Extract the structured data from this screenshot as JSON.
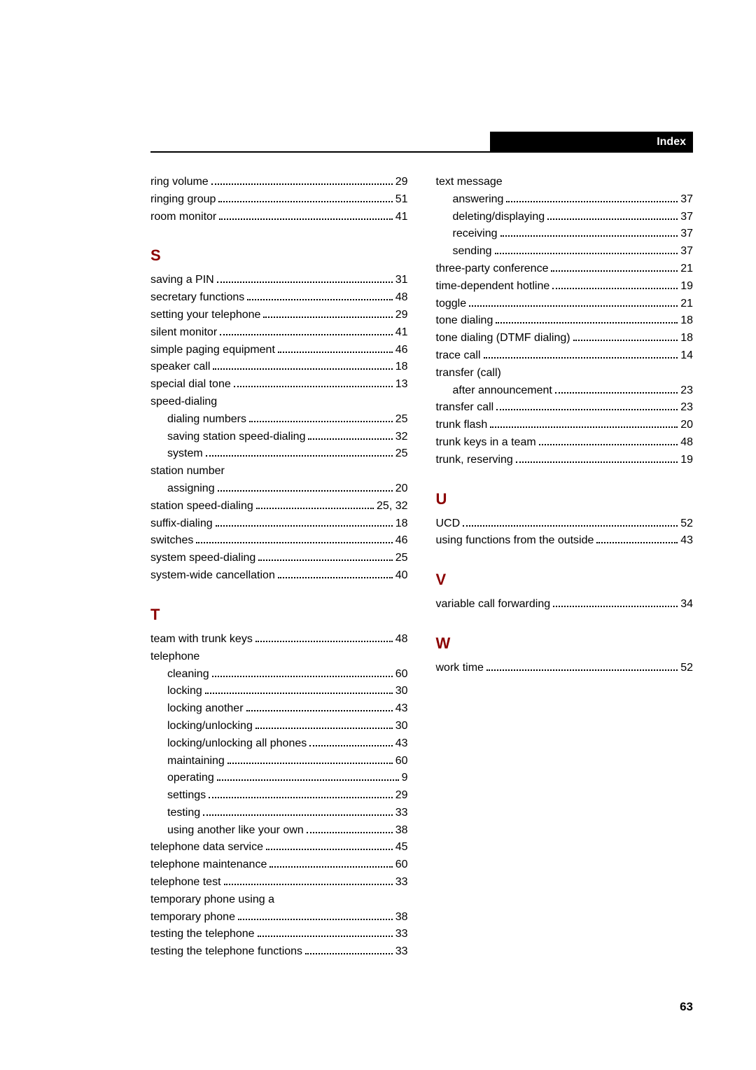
{
  "header": {
    "title": "Index"
  },
  "page_number": "63",
  "columns": [
    {
      "items": [
        {
          "type": "entry",
          "label": "ring volume",
          "page": "29"
        },
        {
          "type": "entry",
          "label": "ringing group",
          "page": "51"
        },
        {
          "type": "entry",
          "label": "room monitor",
          "page": "41"
        },
        {
          "type": "section",
          "letter": "S"
        },
        {
          "type": "entry",
          "label": "saving a PIN",
          "page": "31"
        },
        {
          "type": "entry",
          "label": "secretary functions",
          "page": "48"
        },
        {
          "type": "entry",
          "label": "setting your telephone",
          "page": "29"
        },
        {
          "type": "entry",
          "label": "silent monitor",
          "page": "41"
        },
        {
          "type": "entry",
          "label": "simple paging equipment",
          "page": "46"
        },
        {
          "type": "entry",
          "label": "speaker call",
          "page": "18"
        },
        {
          "type": "entry",
          "label": "special dial tone",
          "page": "13"
        },
        {
          "type": "group",
          "label": "speed-dialing"
        },
        {
          "type": "entry",
          "sub": true,
          "label": "dialing numbers",
          "page": "25"
        },
        {
          "type": "entry",
          "sub": true,
          "label": "saving station speed-dialing",
          "page": "32"
        },
        {
          "type": "entry",
          "sub": true,
          "label": "system",
          "page": "25"
        },
        {
          "type": "group",
          "label": "station number"
        },
        {
          "type": "entry",
          "sub": true,
          "label": "assigning",
          "page": "20"
        },
        {
          "type": "entry",
          "label": "station speed-dialing",
          "page": "25, 32"
        },
        {
          "type": "entry",
          "label": "suffix-dialing",
          "page": "18"
        },
        {
          "type": "entry",
          "label": "switches",
          "page": "46"
        },
        {
          "type": "entry",
          "label": "system speed-dialing",
          "page": "25"
        },
        {
          "type": "entry",
          "label": "system-wide cancellation",
          "page": "40"
        },
        {
          "type": "section",
          "letter": "T"
        },
        {
          "type": "entry",
          "label": "team with trunk keys",
          "page": "48"
        },
        {
          "type": "group",
          "label": "telephone"
        },
        {
          "type": "entry",
          "sub": true,
          "label": "cleaning",
          "page": "60"
        },
        {
          "type": "entry",
          "sub": true,
          "label": "locking",
          "page": "30"
        },
        {
          "type": "entry",
          "sub": true,
          "label": "locking another",
          "page": "43"
        },
        {
          "type": "entry",
          "sub": true,
          "label": "locking/unlocking",
          "page": "30"
        },
        {
          "type": "entry",
          "sub": true,
          "label": "locking/unlocking all phones",
          "page": "43"
        },
        {
          "type": "entry",
          "sub": true,
          "label": "maintaining",
          "page": "60"
        },
        {
          "type": "entry",
          "sub": true,
          "label": "operating",
          "page": "9"
        },
        {
          "type": "entry",
          "sub": true,
          "label": "settings",
          "page": "29"
        },
        {
          "type": "entry",
          "sub": true,
          "label": "testing",
          "page": "33"
        },
        {
          "type": "entry",
          "sub": true,
          "label": "using another like your own",
          "page": "38"
        },
        {
          "type": "entry",
          "label": "telephone data service",
          "page": "45"
        },
        {
          "type": "entry",
          "label": "telephone maintenance",
          "page": "60"
        },
        {
          "type": "entry",
          "label": "telephone test",
          "page": "33"
        },
        {
          "type": "group",
          "label": "temporary phone using a"
        },
        {
          "type": "entry",
          "label": "temporary phone",
          "page": "38"
        },
        {
          "type": "entry",
          "label": "testing the telephone",
          "page": "33"
        },
        {
          "type": "entry",
          "label": "testing the telephone functions",
          "page": "33"
        }
      ]
    },
    {
      "items": [
        {
          "type": "group",
          "label": "text message"
        },
        {
          "type": "entry",
          "sub": true,
          "label": "answering",
          "page": "37"
        },
        {
          "type": "entry",
          "sub": true,
          "label": "deleting/displaying",
          "page": "37"
        },
        {
          "type": "entry",
          "sub": true,
          "label": "receiving",
          "page": "37"
        },
        {
          "type": "entry",
          "sub": true,
          "label": "sending",
          "page": "37"
        },
        {
          "type": "entry",
          "label": "three-party conference",
          "page": "21"
        },
        {
          "type": "entry",
          "label": "time-dependent hotline",
          "page": "19"
        },
        {
          "type": "entry",
          "label": "toggle",
          "page": "21"
        },
        {
          "type": "entry",
          "label": "tone dialing",
          "page": "18"
        },
        {
          "type": "entry",
          "label": "tone dialing (DTMF dialing)",
          "page": "18"
        },
        {
          "type": "entry",
          "label": "trace call",
          "page": "14"
        },
        {
          "type": "group",
          "label": "transfer (call)"
        },
        {
          "type": "entry",
          "sub": true,
          "label": "after announcement",
          "page": "23"
        },
        {
          "type": "entry",
          "label": "transfer call",
          "page": "23"
        },
        {
          "type": "entry",
          "label": "trunk flash",
          "page": "20"
        },
        {
          "type": "entry",
          "label": "trunk keys in a team",
          "page": "48"
        },
        {
          "type": "entry",
          "label": "trunk, reserving",
          "page": "19"
        },
        {
          "type": "section",
          "letter": "U"
        },
        {
          "type": "entry",
          "label": "UCD",
          "page": "52"
        },
        {
          "type": "entry",
          "label": "using functions from the outside",
          "page": "43"
        },
        {
          "type": "section",
          "letter": "V"
        },
        {
          "type": "entry",
          "label": "variable call forwarding",
          "page": "34"
        },
        {
          "type": "section",
          "letter": "W"
        },
        {
          "type": "entry",
          "label": "work time",
          "page": "52"
        }
      ]
    }
  ]
}
